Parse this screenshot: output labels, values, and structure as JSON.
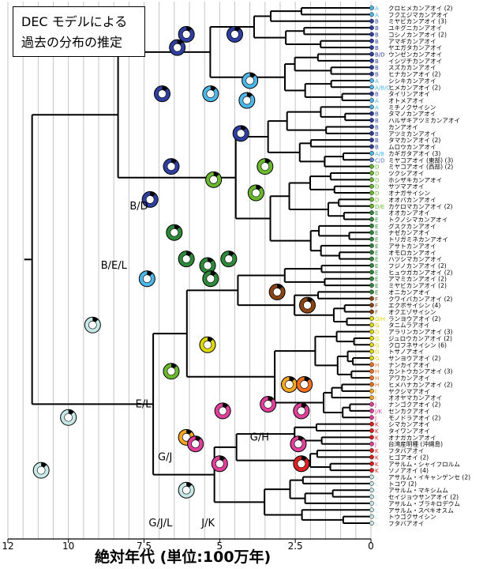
{
  "title": {
    "line1": "DEC モデルによる",
    "line2": "過去の分布の推定"
  },
  "axis": {
    "title": "絶対年代 (単位:100万年)",
    "ticks": [
      {
        "label": "12",
        "value": 12
      },
      {
        "label": "10",
        "value": 10
      },
      {
        "label": "7.5",
        "value": 7.5
      },
      {
        "label": "5",
        "value": 5
      },
      {
        "label": "2.5",
        "value": 2.5
      },
      {
        "label": "0",
        "value": 0
      }
    ],
    "range": [
      12,
      0
    ]
  },
  "region_colors": {
    "A": "#4db8e8",
    "B": "#2f3fa0",
    "C": "#5a78c8",
    "D": "#6ab82e",
    "E": "#2e8a3a",
    "F": "#8b4513",
    "G": "#e0d800",
    "H": "#f07020",
    "I": "#f5a623",
    "J": "#e0409a",
    "K": "#e02020",
    "L": "#c8e8e8"
  },
  "node_labels": [
    {
      "text": "B/D",
      "age": 7.0,
      "row": 30
    },
    {
      "text": "B/E/L",
      "age": 7.7,
      "row": 39
    },
    {
      "text": "E/L",
      "age": 6.9,
      "row": 60
    },
    {
      "text": "G/J",
      "age": 6.2,
      "row": 68
    },
    {
      "text": "G/H",
      "age": 3.0,
      "row": 65
    },
    {
      "text": "G/J/L",
      "age": 6.2,
      "row": 78
    },
    {
      "text": "J/K",
      "age": 4.8,
      "row": 78
    }
  ],
  "tips": [
    {
      "code": "A",
      "name": "クロヒメカンアオイ (2)"
    },
    {
      "code": "A",
      "name": "フクエジマカンアオイ"
    },
    {
      "code": "B",
      "name": "ミヤビカンアオイ (3)"
    },
    {
      "code": "B",
      "name": "ユキグニカンアオイ"
    },
    {
      "code": "B",
      "name": "コシノカンアオイ (2)"
    },
    {
      "code": "B",
      "name": "アマギカンアオイ"
    },
    {
      "code": "B",
      "name": "ヤエガタカンアオイ"
    },
    {
      "code": "B/D",
      "name": "ウンゼンカンアオイ"
    },
    {
      "code": "B",
      "name": "イシヅチカンアオイ"
    },
    {
      "code": "B",
      "name": "スズカカンアオイ"
    },
    {
      "code": "B",
      "name": "ヒナカンアオイ (2)"
    },
    {
      "code": "A",
      "name": "シシキカンアオイ"
    },
    {
      "code": "A/B/C",
      "name": "ヒメカンアオイ (2)"
    },
    {
      "code": "B",
      "name": "タイリンアオイ"
    },
    {
      "code": "A",
      "name": "オトメアオイ"
    },
    {
      "code": "A",
      "name": "ミチノクサイシン"
    },
    {
      "code": "B",
      "name": "タマノカンアオイ"
    },
    {
      "code": "B",
      "name": "ハルザキアツミカンアオイ"
    },
    {
      "code": "B",
      "name": "カンアオイ"
    },
    {
      "code": "B",
      "name": "アツミカンアオイ"
    },
    {
      "code": "B",
      "name": "タマカンアオイ (2)"
    },
    {
      "code": "B",
      "name": "ムロウカンアオイ"
    },
    {
      "code": "A/B",
      "name": "カギガタアオイ (3)"
    },
    {
      "code": "C/D",
      "name": "ミヤコアオイ (東部) (3)"
    },
    {
      "code": "D",
      "name": "ミヤコアオイ (西部) (2)"
    },
    {
      "code": "D",
      "name": "ツクシアオイ"
    },
    {
      "code": "D",
      "name": "ホシザキカンアオイ"
    },
    {
      "code": "D",
      "name": "サツマアオイ"
    },
    {
      "code": "D",
      "name": "オナガサイシン"
    },
    {
      "code": "D",
      "name": "オオバカンアオイ"
    },
    {
      "code": "D/E",
      "name": "カケロマカンアオイ (2)"
    },
    {
      "code": "E",
      "name": "オオカンアオイ"
    },
    {
      "code": "E",
      "name": "トクノシマカンアオイ"
    },
    {
      "code": "E",
      "name": "グスクカンアオイ"
    },
    {
      "code": "E",
      "name": "ナゼカンアオイ"
    },
    {
      "code": "E",
      "name": "トリガミネカンアオイ"
    },
    {
      "code": "E",
      "name": "アサトカンアオイ"
    },
    {
      "code": "E",
      "name": "オモロカンアオイ"
    },
    {
      "code": "E",
      "name": "ハツシマカンアオイ"
    },
    {
      "code": "E",
      "name": "フジノカンアオイ (2)"
    },
    {
      "code": "E",
      "name": "ヒュウガカンアオイ (2)"
    },
    {
      "code": "E",
      "name": "アマミカンアオイ (2)"
    },
    {
      "code": "E",
      "name": "ミヤビカンアオイ (2)"
    },
    {
      "code": "E",
      "name": "オニカンアオイ"
    },
    {
      "code": "F",
      "name": "クワイバカンアオイ (2)"
    },
    {
      "code": "F",
      "name": "エクボサイシン (4)"
    },
    {
      "code": "F",
      "name": "オクエゾサイシン"
    },
    {
      "code": "G/H",
      "name": "ランヨウアオイ (2)"
    },
    {
      "code": "G",
      "name": "タニムラアオイ"
    },
    {
      "code": "G",
      "name": "アラリンカンアオイ (3)"
    },
    {
      "code": "G",
      "name": "ジュロウカンアオイ (2)"
    },
    {
      "code": "G",
      "name": "クロフネサイシン (6)"
    },
    {
      "code": "G",
      "name": "トサノアオイ"
    },
    {
      "code": "G",
      "name": "サンヨウアオイ (2)"
    },
    {
      "code": "H",
      "name": "ナンカイアオイ"
    },
    {
      "code": "H",
      "name": "カントウカンアオイ (3)"
    },
    {
      "code": "H",
      "name": "アワカンアオイ"
    },
    {
      "code": "H",
      "name": "ヒメハナカンアオイ (2)"
    },
    {
      "code": "I",
      "name": "ヤクシマアオイ"
    },
    {
      "code": "I",
      "name": "オオヤマカンアオイ"
    },
    {
      "code": "J",
      "name": "ナンゴクアオイ (2)"
    },
    {
      "code": "J/K",
      "name": "センカクアオイ"
    },
    {
      "code": "J",
      "name": "モノドラアオイ (2)"
    },
    {
      "code": "K",
      "name": "シマカンアオイ"
    },
    {
      "code": "K",
      "name": "タイワンアオイ"
    },
    {
      "code": "K",
      "name": "オナガカンアオイ"
    },
    {
      "code": "J",
      "name": "台湾産明種 (沖縄島)"
    },
    {
      "code": "K",
      "name": "フタバアオイ"
    },
    {
      "code": "K",
      "name": "ヒゴアオイ (2)"
    },
    {
      "code": "K",
      "name": "アサルム・シャイフロルム"
    },
    {
      "code": "K",
      "name": "ソノアオイ (4)"
    },
    {
      "code": "L",
      "name": "アサルム・イキャンゲンセ (2)"
    },
    {
      "code": "L",
      "name": "トコワ (2)"
    },
    {
      "code": "L",
      "name": "アサルム・マキシムム"
    },
    {
      "code": "L",
      "name": "セイジョウサンアオイ (2)"
    },
    {
      "code": "L",
      "name": "アサルム・ブラキロデウム"
    },
    {
      "code": "L",
      "name": "アサルム・スペキオスム"
    },
    {
      "code": "L",
      "name": "トウゴクサイシン"
    },
    {
      "code": "L",
      "name": "フタバアオイ"
    }
  ]
}
